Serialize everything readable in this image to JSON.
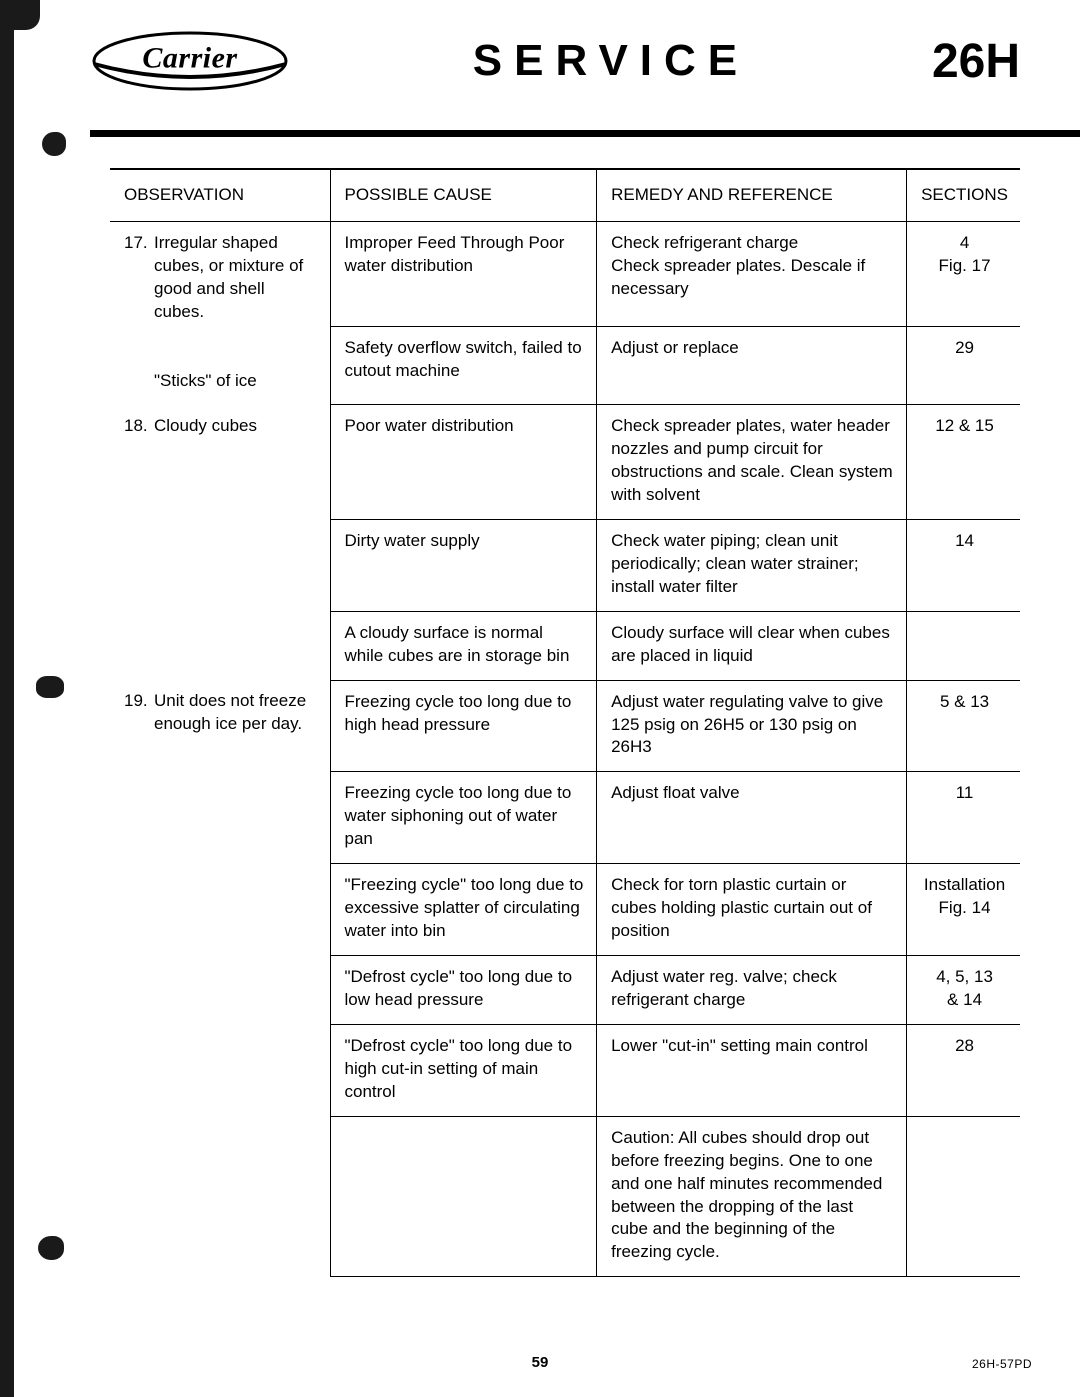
{
  "header": {
    "logo_text": "Carrier",
    "title": "SERVICE",
    "model": "26H"
  },
  "columns": {
    "observation": "OBSERVATION",
    "cause": "POSSIBLE CAUSE",
    "remedy": "REMEDY AND REFERENCE",
    "sections": "SECTIONS"
  },
  "rows": [
    {
      "num": "17.",
      "observation": "Irregular shaped cubes, or mixture of good and shell cubes.",
      "observation_extra": "\"Sticks\" of ice",
      "entries": [
        {
          "cause": "Improper Feed Through Poor water distribution",
          "remedy": "Check refrigerant charge\nCheck spreader plates. Descale if necessary",
          "sections": "4\nFig. 17"
        },
        {
          "cause": "Safety overflow switch, failed to cutout machine",
          "remedy": "Adjust or replace",
          "sections": "29"
        }
      ]
    },
    {
      "num": "18.",
      "observation": "Cloudy cubes",
      "entries": [
        {
          "cause": "Poor water distribution",
          "remedy": "Check spreader plates, water header nozzles and pump circuit for obstructions and scale. Clean system with solvent",
          "sections": "12 & 15"
        },
        {
          "cause": "Dirty water supply",
          "remedy": "Check water piping; clean unit periodically; clean water strainer; install water filter",
          "sections": "14"
        },
        {
          "cause": "A cloudy surface is normal while cubes are in storage bin",
          "remedy": "Cloudy surface will clear when cubes are placed in liquid",
          "sections": ""
        }
      ]
    },
    {
      "num": "19.",
      "observation": "Unit does not freeze enough ice per day.",
      "entries": [
        {
          "cause": "Freezing cycle too long due to high head pressure",
          "remedy": "Adjust water regulating valve to give 125 psig on 26H5 or 130 psig on 26H3",
          "sections": "5 & 13"
        },
        {
          "cause": "Freezing cycle too long due to water siphoning out of water pan",
          "remedy": "Adjust float valve",
          "sections": "11"
        },
        {
          "cause": "\"Freezing cycle\" too long due to excessive splatter of circulating water into bin",
          "remedy": "Check for torn plastic curtain or cubes holding plastic curtain out of position",
          "sections": "Installation\nFig. 14"
        },
        {
          "cause": "\"Defrost cycle\" too long due to low head pressure",
          "remedy": "Adjust water reg. valve; check refrigerant charge",
          "sections": "4, 5, 13\n& 14"
        },
        {
          "cause": "\"Defrost cycle\" too long due to high cut-in setting of main control",
          "remedy": "Lower \"cut-in\" setting main control",
          "sections": "28"
        },
        {
          "cause": "",
          "remedy": "Caution:  All cubes should drop out before freezing begins. One to one and one half minutes recommended between the dropping of the last cube and the beginning of the freezing cycle.",
          "sections": ""
        }
      ]
    }
  ],
  "footer": {
    "page_num": "59",
    "doc_code": "26H-57PD"
  }
}
